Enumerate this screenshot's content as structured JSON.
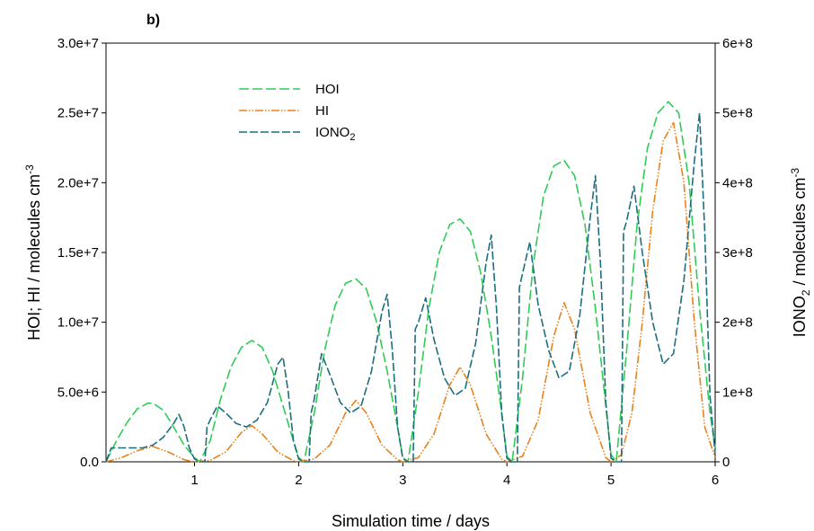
{
  "chart_data": {
    "type": "line",
    "panel_label": "b)",
    "xlabel": "Simulation time / days",
    "xlim": [
      0.15,
      6
    ],
    "x_ticks": [
      1,
      2,
      3,
      4,
      5,
      6
    ],
    "x_tick_labels": [
      "1",
      "2",
      "3",
      "4",
      "5",
      "6"
    ],
    "y_left": {
      "label_main": "HOI; HI / molecules cm",
      "label_sup": "-3",
      "lim": [
        0,
        30000000
      ],
      "ticks": [
        0,
        5000000,
        10000000,
        15000000,
        20000000,
        25000000,
        30000000
      ],
      "tick_labels": [
        "0.0",
        "5.0e+6",
        "1.0e+7",
        "1.5e+7",
        "2.0e+7",
        "2.5e+7",
        "3.0e+7"
      ]
    },
    "y_right": {
      "label_pre": "IONO",
      "label_sub": "2",
      "label_post": " / molecules cm",
      "label_sup": "-3",
      "lim": [
        0,
        600000000
      ],
      "ticks": [
        0,
        100000000,
        200000000,
        300000000,
        400000000,
        500000000,
        600000000
      ],
      "tick_labels": [
        "0",
        "1e+8",
        "2e+8",
        "3e+8",
        "4e+8",
        "5e+8",
        "6e+8"
      ]
    },
    "grid": false,
    "legend_placement": "top-left",
    "series": [
      {
        "name": "HOI",
        "legend_label": "HOI",
        "legend_sub": "",
        "axis": "left",
        "color": "#2ecc55",
        "dash": "long-dash",
        "x": [
          0.15,
          0.25,
          0.35,
          0.45,
          0.55,
          0.6,
          0.7,
          0.8,
          0.9,
          1.0,
          1.05,
          1.15,
          1.25,
          1.35,
          1.45,
          1.55,
          1.65,
          1.75,
          1.85,
          1.95,
          2.0,
          2.05,
          2.15,
          2.25,
          2.35,
          2.45,
          2.55,
          2.65,
          2.75,
          2.85,
          2.95,
          3.0,
          3.05,
          3.15,
          3.25,
          3.35,
          3.45,
          3.55,
          3.65,
          3.75,
          3.85,
          3.95,
          4.0,
          4.05,
          4.15,
          4.25,
          4.35,
          4.45,
          4.55,
          4.65,
          4.75,
          4.85,
          4.95,
          5.0,
          5.05,
          5.15,
          5.25,
          5.35,
          5.45,
          5.55,
          5.65,
          5.75,
          5.85,
          5.95,
          6.0
        ],
        "y": [
          0,
          1500000,
          2800000,
          3800000,
          4200000,
          4200000,
          3700000,
          2500000,
          1200000,
          300000,
          0,
          1500000,
          4500000,
          6800000,
          8200000,
          8700000,
          8200000,
          6500000,
          4000000,
          1500000,
          300000,
          0,
          3500000,
          8000000,
          11200000,
          12800000,
          13100000,
          12400000,
          10000000,
          6500000,
          2500000,
          300000,
          0,
          5000000,
          11000000,
          15000000,
          17000000,
          17400000,
          16500000,
          13500000,
          9000000,
          3500000,
          400000,
          0,
          6000000,
          14000000,
          19000000,
          21200000,
          21600000,
          20500000,
          17000000,
          11000000,
          4000000,
          500000,
          0,
          8000000,
          17000000,
          22500000,
          25000000,
          25800000,
          25000000,
          20000000,
          11000000,
          3500000,
          1000000
        ]
      },
      {
        "name": "HI",
        "legend_label": "HI",
        "legend_sub": "",
        "axis": "left",
        "color": "#e8821c",
        "dash": "dash-dot-dot",
        "x": [
          0.15,
          0.3,
          0.45,
          0.6,
          0.75,
          0.9,
          1.0,
          1.15,
          1.3,
          1.45,
          1.55,
          1.65,
          1.8,
          1.95,
          2.0,
          2.15,
          2.3,
          2.45,
          2.55,
          2.65,
          2.8,
          2.95,
          3.0,
          3.15,
          3.3,
          3.45,
          3.55,
          3.65,
          3.8,
          3.95,
          4.0,
          4.15,
          4.3,
          4.45,
          4.55,
          4.65,
          4.8,
          4.95,
          5.0,
          5.1,
          5.2,
          5.3,
          5.4,
          5.5,
          5.6,
          5.7,
          5.8,
          5.9,
          6.0
        ],
        "y": [
          0,
          300000,
          800000,
          1100000,
          700000,
          150000,
          0,
          100000,
          700000,
          2100000,
          2600000,
          2000000,
          700000,
          80000,
          0,
          200000,
          1200000,
          3500000,
          4400000,
          3500000,
          1200000,
          150000,
          0,
          300000,
          2000000,
          5500000,
          6800000,
          5500000,
          2000000,
          200000,
          0,
          400000,
          3000000,
          9000000,
          11400000,
          9500000,
          3500000,
          300000,
          0,
          500000,
          3500000,
          10000000,
          18000000,
          23000000,
          24300000,
          20000000,
          10000000,
          2500000,
          300000
        ]
      },
      {
        "name": "IONO2",
        "legend_label": "IONO",
        "legend_sub": "2",
        "axis": "right",
        "color": "#1b6f7e",
        "dash": "dash",
        "x": [
          0.15,
          0.2,
          0.3,
          0.5,
          0.6,
          0.7,
          0.8,
          0.85,
          0.9,
          0.95,
          1.0,
          1.05,
          1.1,
          1.12,
          1.15,
          1.22,
          1.3,
          1.4,
          1.5,
          1.6,
          1.7,
          1.8,
          1.85,
          1.9,
          1.95,
          2.0,
          2.05,
          2.1,
          2.12,
          2.15,
          2.22,
          2.3,
          2.4,
          2.5,
          2.6,
          2.7,
          2.8,
          2.85,
          2.9,
          2.95,
          3.0,
          3.05,
          3.1,
          3.12,
          3.15,
          3.22,
          3.3,
          3.4,
          3.5,
          3.6,
          3.7,
          3.8,
          3.85,
          3.9,
          3.95,
          4.0,
          4.05,
          4.1,
          4.12,
          4.15,
          4.22,
          4.3,
          4.4,
          4.5,
          4.6,
          4.7,
          4.8,
          4.85,
          4.9,
          4.95,
          5.0,
          5.05,
          5.1,
          5.12,
          5.15,
          5.22,
          5.3,
          5.4,
          5.5,
          5.6,
          5.7,
          5.8,
          5.85,
          5.9,
          5.95,
          6.0
        ],
        "y": [
          0,
          20000000,
          20000000,
          20000000,
          24000000,
          35000000,
          55000000,
          68000000,
          50000000,
          20000000,
          4000000,
          0,
          0,
          50000000,
          60000000,
          80000000,
          70000000,
          55000000,
          50000000,
          60000000,
          85000000,
          140000000,
          150000000,
          100000000,
          30000000,
          4000000,
          0,
          0,
          70000000,
          90000000,
          155000000,
          125000000,
          85000000,
          70000000,
          80000000,
          130000000,
          215000000,
          240000000,
          160000000,
          50000000,
          5000000,
          0,
          0,
          190000000,
          200000000,
          235000000,
          175000000,
          120000000,
          95000000,
          105000000,
          170000000,
          285000000,
          325000000,
          220000000,
          70000000,
          5000000,
          0,
          0,
          250000000,
          270000000,
          315000000,
          225000000,
          160000000,
          120000000,
          130000000,
          210000000,
          350000000,
          410000000,
          280000000,
          85000000,
          5000000,
          0,
          0,
          330000000,
          345000000,
          395000000,
          300000000,
          200000000,
          140000000,
          155000000,
          260000000,
          430000000,
          500000000,
          330000000,
          95000000,
          10000000
        ]
      }
    ]
  }
}
